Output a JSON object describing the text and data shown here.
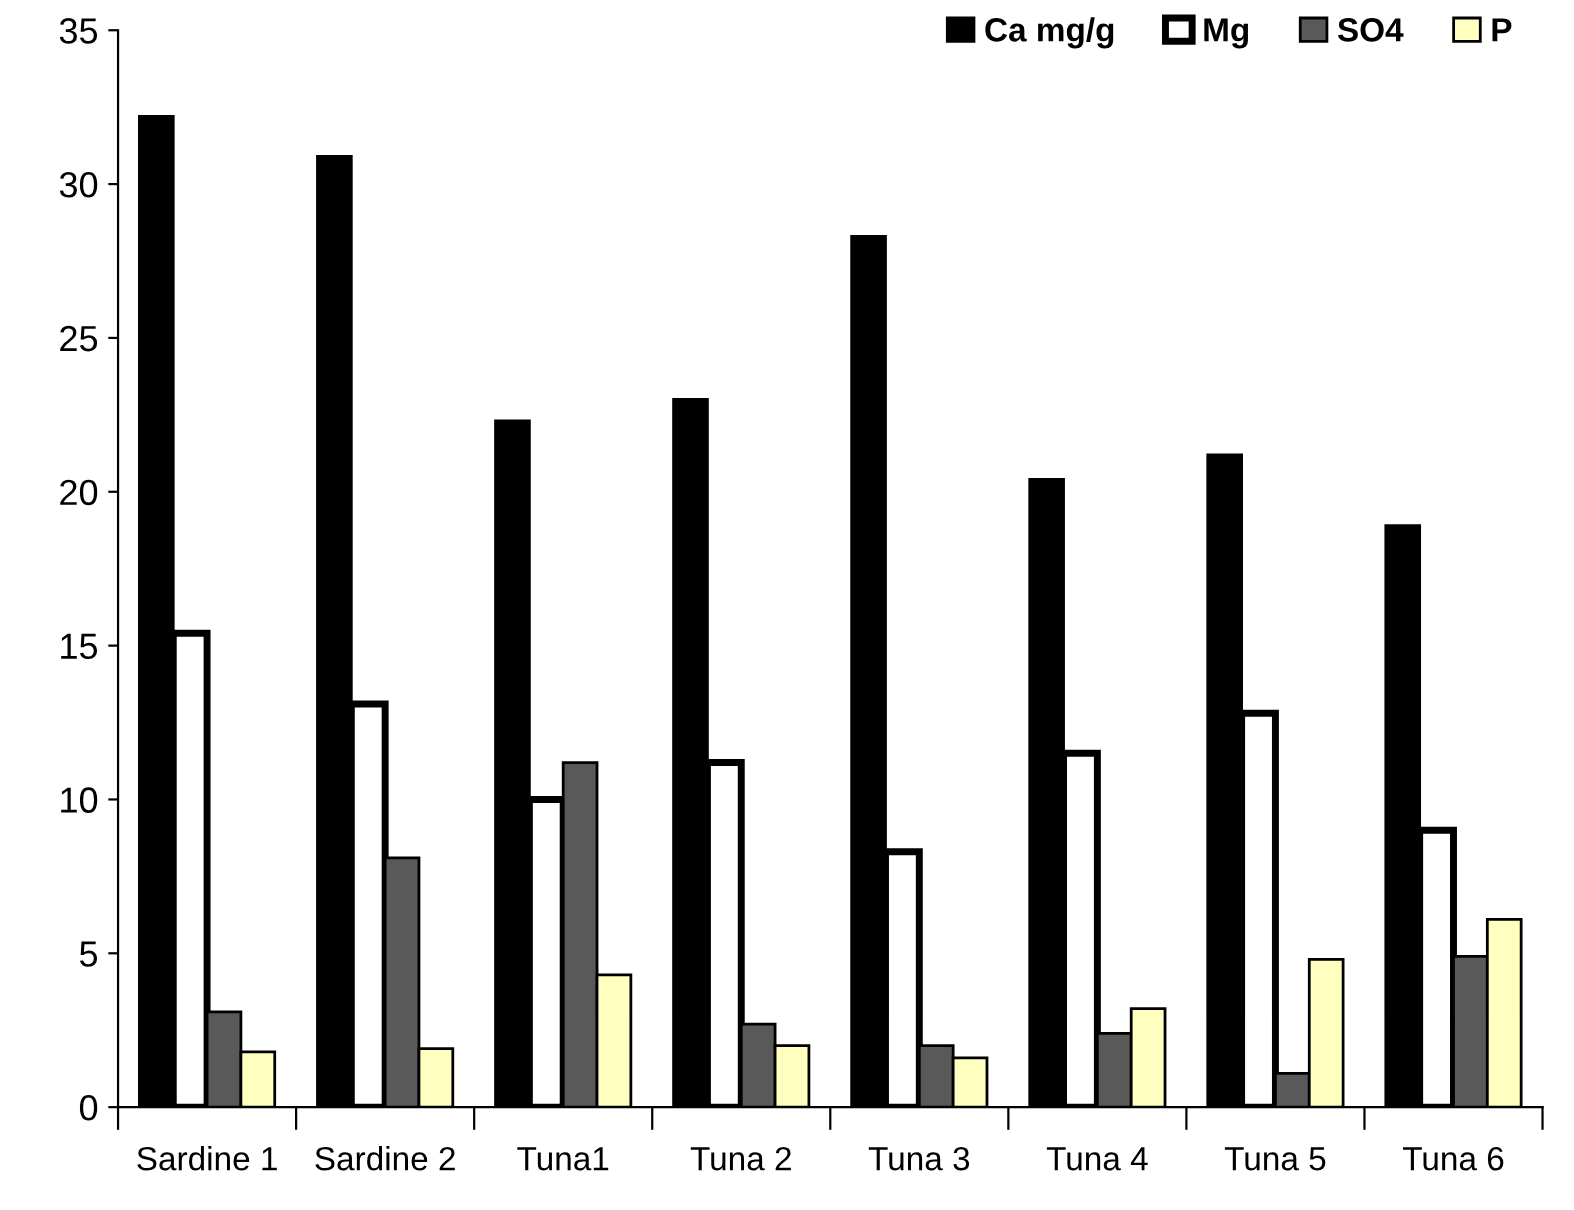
{
  "chart_data": {
    "type": "bar",
    "categories": [
      "Sardine 1",
      "Sardine 2",
      "Tuna1",
      "Tuna 2",
      "Tuna 3",
      "Tuna 4",
      "Tuna 5",
      "Tuna 6"
    ],
    "series": [
      {
        "name": "Ca mg/g",
        "color": "#000000",
        "values": [
          32.2,
          30.9,
          22.3,
          23.0,
          28.3,
          20.4,
          21.2,
          18.9
        ]
      },
      {
        "name": "Mg",
        "color": "#ffffff",
        "values": [
          15.4,
          13.1,
          10.0,
          11.2,
          8.3,
          11.5,
          12.8,
          9.0
        ]
      },
      {
        "name": "SO4",
        "color": "#595959",
        "values": [
          3.1,
          8.1,
          11.2,
          2.7,
          2.0,
          2.4,
          1.1,
          4.9
        ]
      },
      {
        "name": "P",
        "color": "#ffffc0",
        "values": [
          1.8,
          1.9,
          4.3,
          2.0,
          1.6,
          3.2,
          4.8,
          6.1
        ]
      }
    ],
    "ylim": [
      0,
      35
    ],
    "yticks": [
      0,
      5,
      10,
      15,
      20,
      25,
      30,
      35
    ],
    "grid": false,
    "legend": "top right"
  }
}
